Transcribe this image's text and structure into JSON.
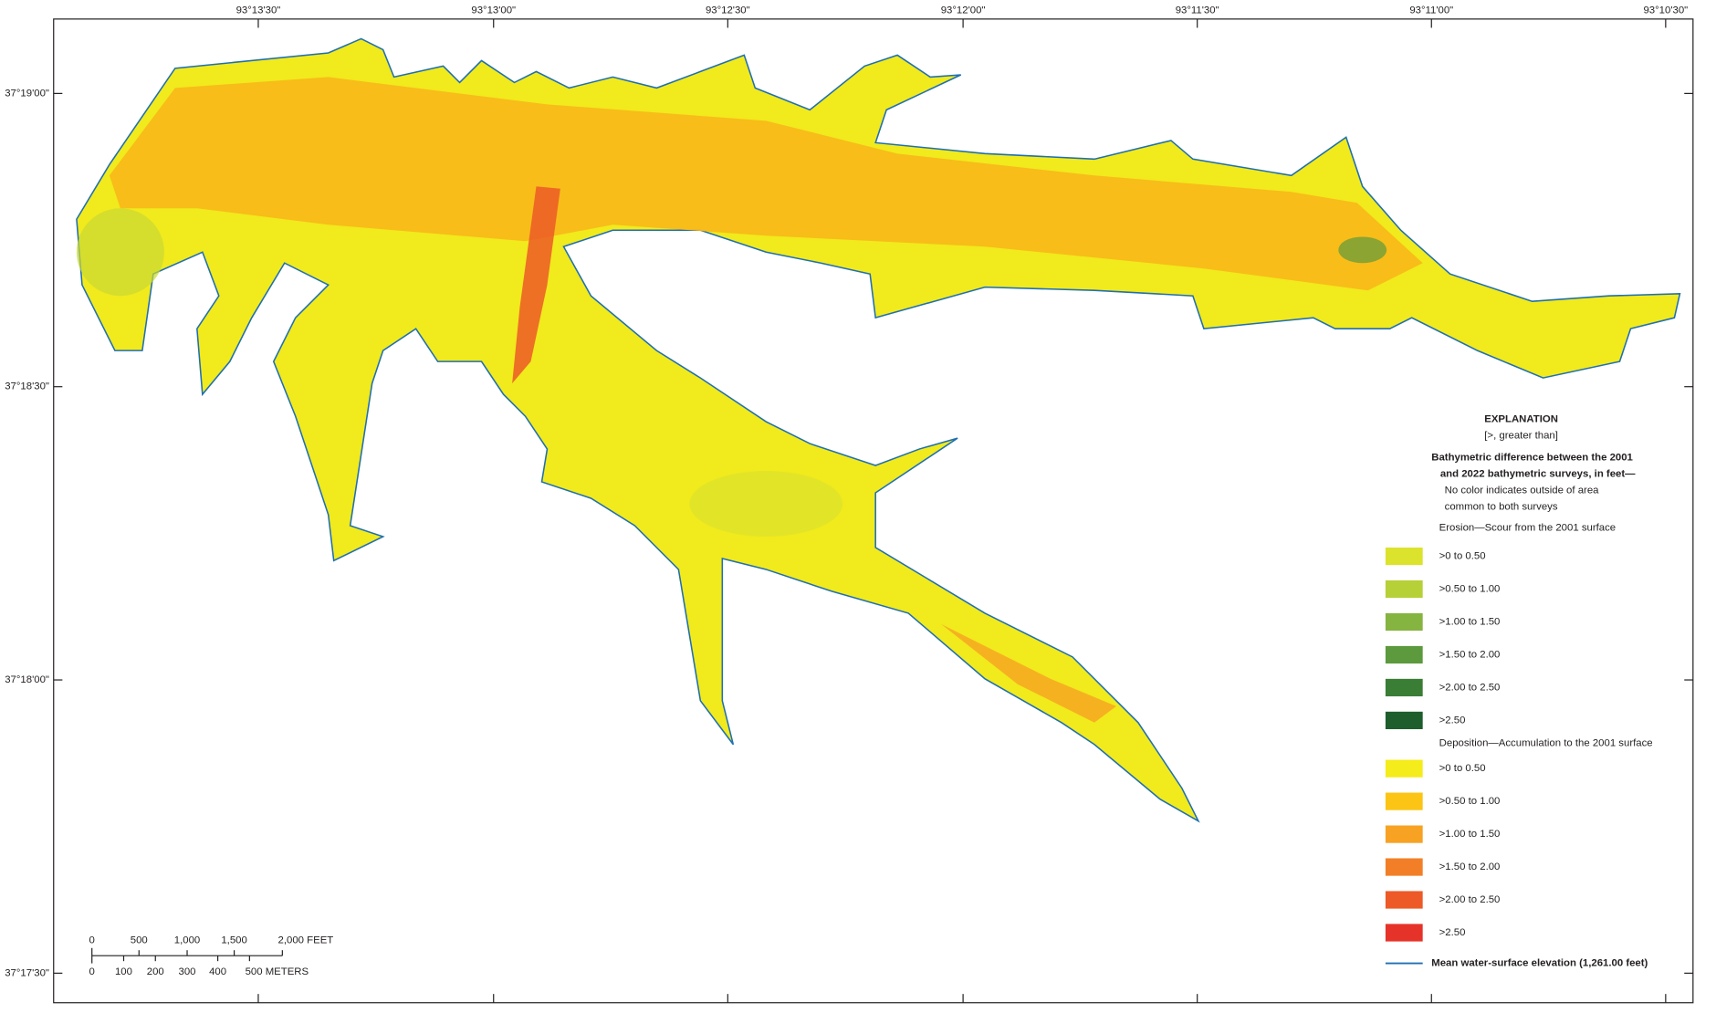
{
  "map": {
    "longitude_labels": [
      "93°13'30\"",
      "93°13'00\"",
      "93°12'30\"",
      "93°12'00\"",
      "93°11'30\"",
      "93°11'00\"",
      "93°10'30\""
    ],
    "latitude_labels": [
      "37°19'00\"",
      "37°18'30\"",
      "37°18'00\"",
      "37°17'30\""
    ],
    "legend": {
      "title": "EXPLANATION",
      "subtitle": "[>, greater than]",
      "heading_lines": [
        "Bathymetric difference between the 2001",
        "and 2022 bathymetric surveys, in feet—"
      ],
      "note_lines": [
        "No color indicates outside of area",
        "common to both surveys"
      ],
      "erosion": {
        "label": "Erosion—Scour from the 2001 surface",
        "classes": [
          {
            "label": ">0 to 0.50",
            "color": "#dbe32c"
          },
          {
            "label": ">0.50 to 1.00",
            "color": "#b6d037"
          },
          {
            "label": ">1.00 to 1.50",
            "color": "#86b441"
          },
          {
            "label": ">1.50 to 2.00",
            "color": "#5c9a3d"
          },
          {
            "label": ">2.00 to 2.50",
            "color": "#3a7d35"
          },
          {
            "label": ">2.50",
            "color": "#1d5e2c"
          }
        ]
      },
      "deposition": {
        "label": "Deposition—Accumulation to the 2001 surface",
        "classes": [
          {
            "label": ">0 to 0.50",
            "color": "#f4ec1b"
          },
          {
            "label": ">0.50 to 1.00",
            "color": "#fcc515"
          },
          {
            "label": ">1.00 to 1.50",
            "color": "#f7a223"
          },
          {
            "label": ">1.50 to 2.00",
            "color": "#f27f27"
          },
          {
            "label": ">2.00 to 2.50",
            "color": "#ed5a27"
          },
          {
            "label": ">2.50",
            "color": "#e6332a"
          }
        ]
      },
      "water_line": {
        "label": "Mean water-surface elevation (1,261.00 feet)",
        "color": "#1f6fb2"
      }
    },
    "scale_bar": {
      "feet_labels": [
        "0",
        "500",
        "1,000",
        "1,500",
        "2,000 FEET"
      ],
      "meter_labels": [
        "0",
        "100",
        "200",
        "300",
        "400",
        "500 METERS"
      ]
    }
  }
}
